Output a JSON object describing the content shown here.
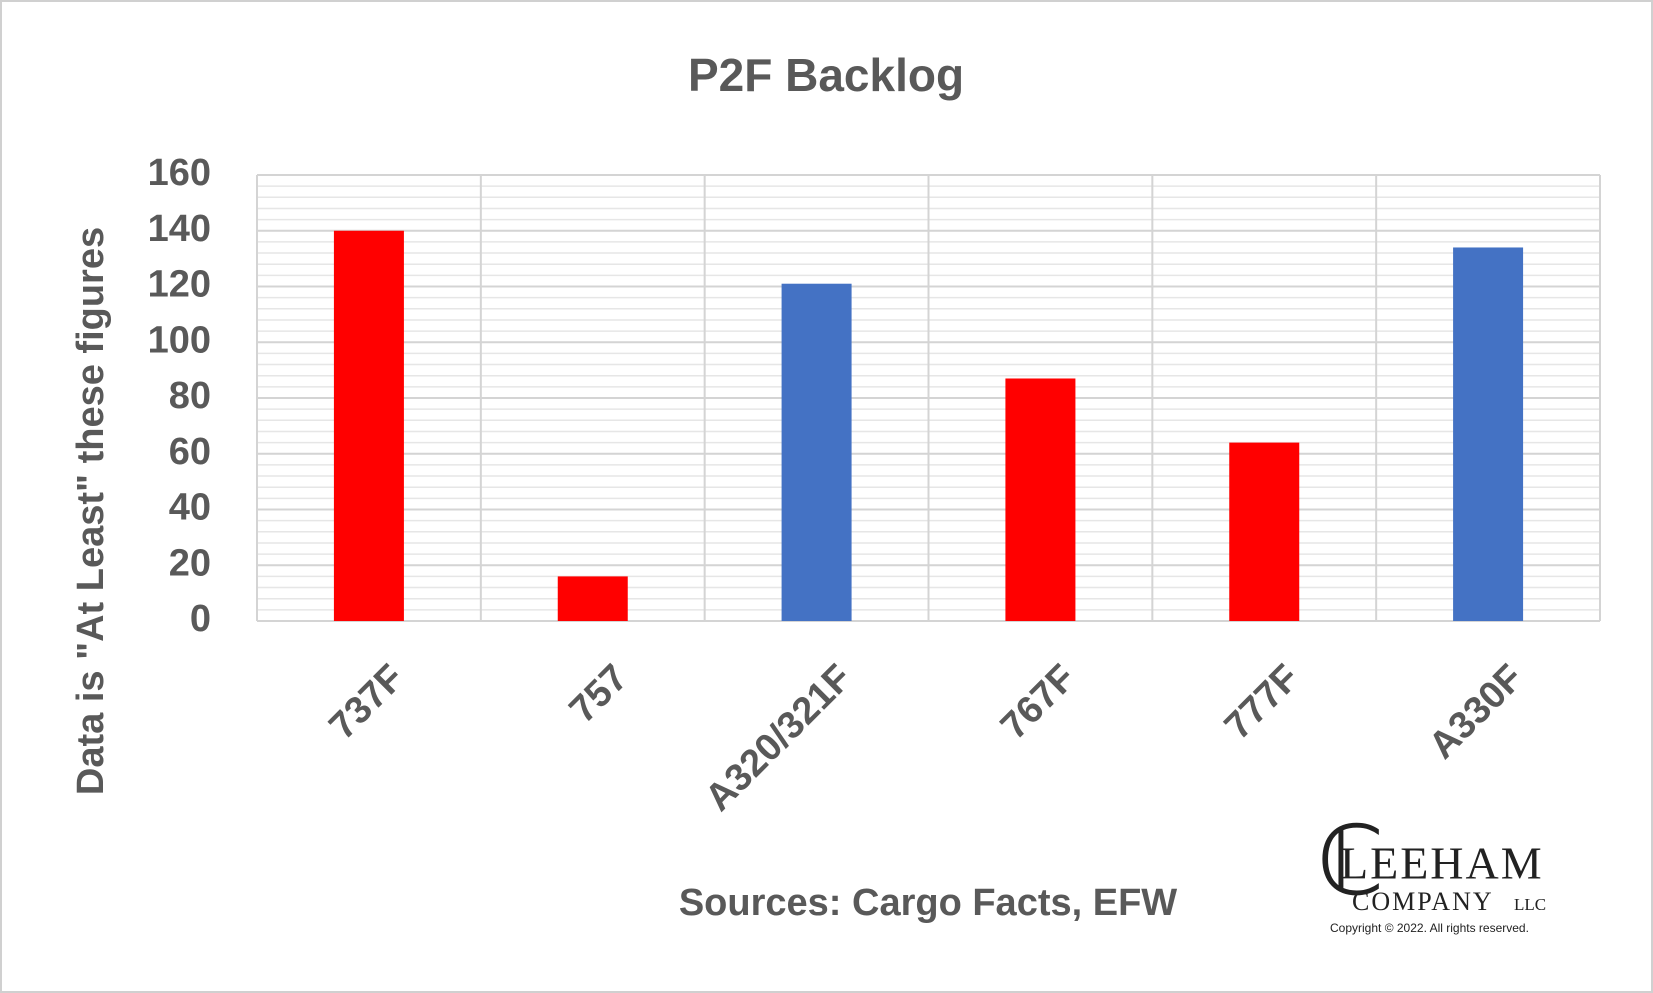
{
  "chart_data": {
    "type": "bar",
    "title": "P2F Backlog",
    "y_label": "Data is \"At Least\" these figures",
    "x_label": "Sources: Cargo Facts, EFW",
    "categories": [
      "737F",
      "757",
      "A320/321F",
      "767F",
      "777F",
      "A330F"
    ],
    "values": [
      140,
      16,
      121,
      87,
      64,
      134
    ],
    "colors": [
      "#ff0000",
      "#ff0000",
      "#4472c4",
      "#ff0000",
      "#ff0000",
      "#4472c4"
    ],
    "ylim": [
      0,
      160
    ],
    "yticks": [
      0,
      20,
      40,
      60,
      80,
      100,
      120,
      140,
      160
    ],
    "grid": true,
    "logo": {
      "name": "LEEHAM",
      "company": "COMPANY",
      "suffix": "LLC",
      "copyright": "Copyright © 2022. All rights reserved."
    }
  }
}
